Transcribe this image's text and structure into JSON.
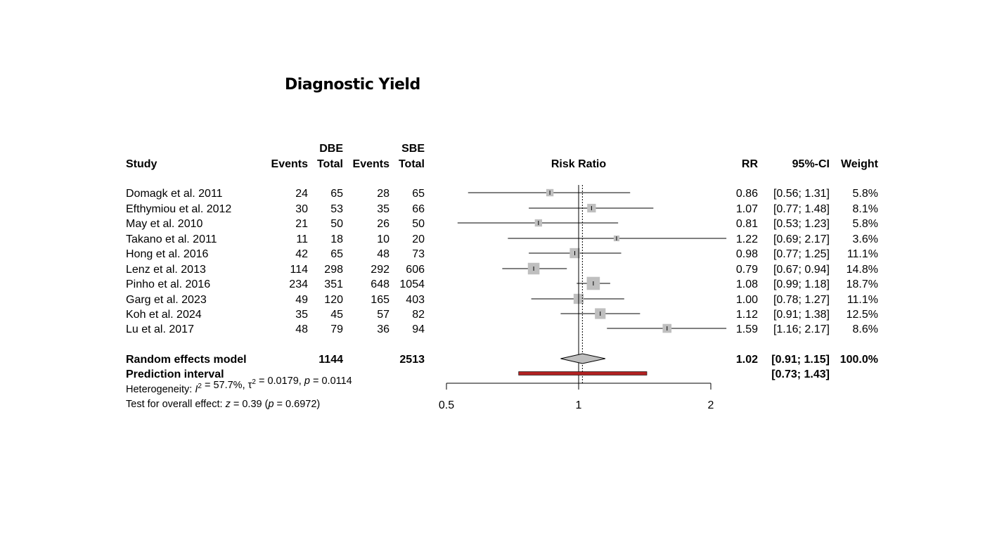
{
  "chart_data": {
    "type": "forest",
    "title": "Diagnostic Yield",
    "group_labels": [
      "DBE",
      "SBE"
    ],
    "headers": {
      "study": "Study",
      "events": "Events",
      "total": "Total",
      "plot": "Risk Ratio",
      "rr": "RR",
      "ci": "95%-CI",
      "weight": "Weight"
    },
    "xscale": "log",
    "xlim": [
      0.5,
      2
    ],
    "xticks": [
      "0.5",
      "1",
      "2"
    ],
    "studies": [
      {
        "name": "Domagk et al. 2011",
        "e1": "24",
        "n1": "65",
        "e2": "28",
        "n2": "65",
        "rr": 0.86,
        "lo": 0.56,
        "hi": 1.31,
        "rr_text": "0.86",
        "ci_text": "[0.56; 1.31]",
        "weight": "5.8%"
      },
      {
        "name": "Efthymiou et al. 2012",
        "e1": "30",
        "n1": "53",
        "e2": "35",
        "n2": "66",
        "rr": 1.07,
        "lo": 0.77,
        "hi": 1.48,
        "rr_text": "1.07",
        "ci_text": "[0.77; 1.48]",
        "weight": "8.1%"
      },
      {
        "name": "May et al. 2010",
        "e1": "21",
        "n1": "50",
        "e2": "26",
        "n2": "50",
        "rr": 0.81,
        "lo": 0.53,
        "hi": 1.23,
        "rr_text": "0.81",
        "ci_text": "[0.53; 1.23]",
        "weight": "5.8%"
      },
      {
        "name": "Takano et al. 2011",
        "e1": "11",
        "n1": "18",
        "e2": "10",
        "n2": "20",
        "rr": 1.22,
        "lo": 0.69,
        "hi": 2.17,
        "rr_text": "1.22",
        "ci_text": "[0.69; 2.17]",
        "weight": "3.6%"
      },
      {
        "name": "Hong et al. 2016",
        "e1": "42",
        "n1": "65",
        "e2": "48",
        "n2": "73",
        "rr": 0.98,
        "lo": 0.77,
        "hi": 1.25,
        "rr_text": "0.98",
        "ci_text": "[0.77; 1.25]",
        "weight": "11.1%"
      },
      {
        "name": "Lenz et al. 2013",
        "e1": "114",
        "n1": "298",
        "e2": "292",
        "n2": "606",
        "rr": 0.79,
        "lo": 0.67,
        "hi": 0.94,
        "rr_text": "0.79",
        "ci_text": "[0.67; 0.94]",
        "weight": "14.8%"
      },
      {
        "name": "Pinho et al. 2016",
        "e1": "234",
        "n1": "351",
        "e2": "648",
        "n2": "1054",
        "rr": 1.08,
        "lo": 0.99,
        "hi": 1.18,
        "rr_text": "1.08",
        "ci_text": "[0.99; 1.18]",
        "weight": "18.7%"
      },
      {
        "name": "Garg et al. 2023",
        "e1": "49",
        "n1": "120",
        "e2": "165",
        "n2": "403",
        "rr": 1.0,
        "lo": 0.78,
        "hi": 1.27,
        "rr_text": "1.00",
        "ci_text": "[0.78; 1.27]",
        "weight": "11.1%"
      },
      {
        "name": "Koh et al. 2024",
        "e1": "35",
        "n1": "45",
        "e2": "57",
        "n2": "82",
        "rr": 1.12,
        "lo": 0.91,
        "hi": 1.38,
        "rr_text": "1.12",
        "ci_text": "[0.91; 1.38]",
        "weight": "12.5%"
      },
      {
        "name": "Lu et al. 2017",
        "e1": "48",
        "n1": "79",
        "e2": "36",
        "n2": "94",
        "rr": 1.59,
        "lo": 1.16,
        "hi": 2.17,
        "rr_text": "1.59",
        "ci_text": "[1.16; 2.17]",
        "weight": "8.6%"
      }
    ],
    "pooled": {
      "name": "Random effects model",
      "n1": "1144",
      "n2": "2513",
      "rr": 1.02,
      "lo": 0.91,
      "hi": 1.15,
      "rr_text": "1.02",
      "ci_text": "[0.91; 1.15]",
      "weight": "100.0%"
    },
    "prediction": {
      "name": "Prediction interval",
      "lo": 0.73,
      "hi": 1.43,
      "ci_text": "[0.73; 1.43]"
    },
    "heterogeneity": {
      "prefix": "Heterogeneity: ",
      "i2": "57.7%",
      "tau2": "0.0179",
      "p": "0.0114"
    },
    "overall_test": {
      "prefix": "Test for overall effect: ",
      "z": "0.39",
      "p": "0.6972"
    },
    "colors": {
      "square": "#bfbfbf",
      "diamond": "#bfbfbf",
      "prediction": "#b22222",
      "line": "#000000"
    }
  }
}
